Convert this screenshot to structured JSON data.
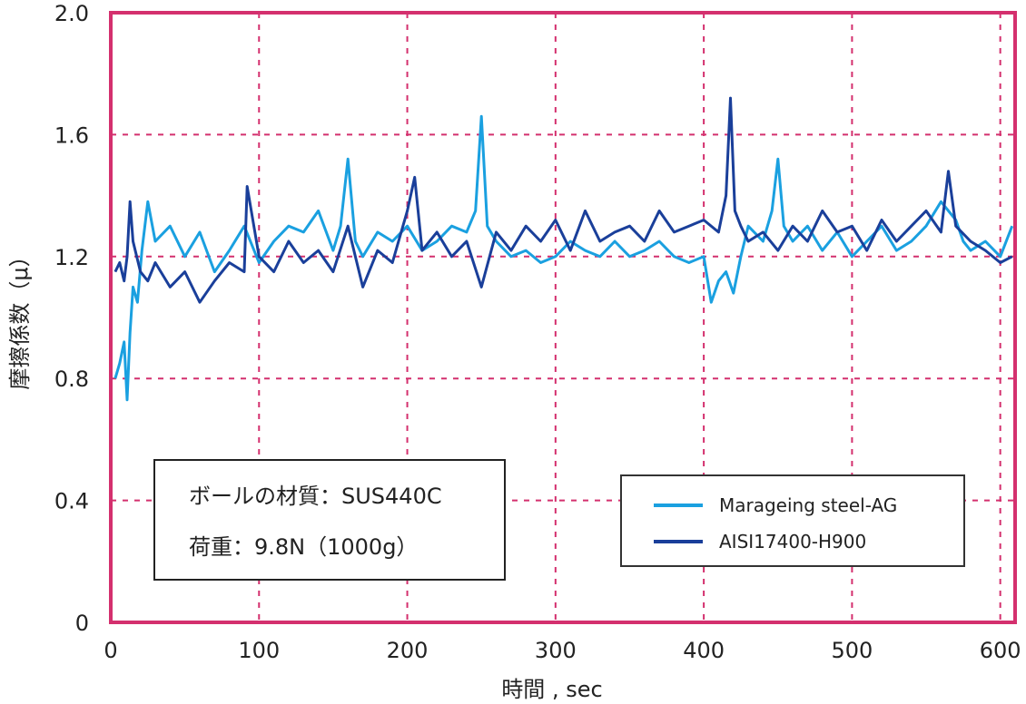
{
  "chart_data": {
    "type": "line",
    "xlabel": "時間 , sec",
    "ylabel": "摩擦係数（μ）",
    "xlim": [
      0,
      610
    ],
    "ylim": [
      0,
      2.0
    ],
    "x_ticks": [
      0,
      100,
      200,
      300,
      400,
      500,
      600
    ],
    "y_ticks": [
      0,
      0.4,
      0.8,
      1.2,
      1.6,
      2.0
    ],
    "x_tick_labels": [
      "0",
      "100",
      "200",
      "300",
      "400",
      "500",
      "600"
    ],
    "y_tick_labels": [
      "0",
      "0.4",
      "0.8",
      "1.2",
      "1.6",
      "2.0"
    ],
    "grid": true,
    "legend_position": "lower-right",
    "frame_color": "#d4306e",
    "grid_color": "#d4306e",
    "series": [
      {
        "name": "Marageing steel-AG",
        "color": "#1aa0e0",
        "x": [
          3,
          6,
          9,
          11,
          13,
          15,
          18,
          21,
          25,
          30,
          40,
          50,
          60,
          70,
          80,
          90,
          100,
          110,
          120,
          130,
          140,
          150,
          155,
          160,
          165,
          170,
          180,
          190,
          200,
          210,
          220,
          230,
          240,
          246,
          250,
          254,
          260,
          270,
          280,
          290,
          300,
          310,
          320,
          330,
          340,
          350,
          360,
          370,
          380,
          390,
          400,
          405,
          410,
          415,
          420,
          425,
          430,
          440,
          446,
          450,
          454,
          460,
          470,
          480,
          490,
          500,
          510,
          520,
          530,
          540,
          550,
          560,
          570,
          575,
          580,
          590,
          600,
          608
        ],
        "y": [
          0.8,
          0.85,
          0.92,
          0.73,
          0.95,
          1.1,
          1.05,
          1.22,
          1.38,
          1.25,
          1.3,
          1.2,
          1.28,
          1.15,
          1.22,
          1.3,
          1.18,
          1.25,
          1.3,
          1.28,
          1.35,
          1.22,
          1.3,
          1.52,
          1.25,
          1.2,
          1.28,
          1.25,
          1.3,
          1.22,
          1.25,
          1.3,
          1.28,
          1.35,
          1.66,
          1.3,
          1.25,
          1.2,
          1.22,
          1.18,
          1.2,
          1.25,
          1.22,
          1.2,
          1.25,
          1.2,
          1.22,
          1.25,
          1.2,
          1.18,
          1.2,
          1.05,
          1.12,
          1.15,
          1.08,
          1.2,
          1.3,
          1.25,
          1.35,
          1.52,
          1.3,
          1.25,
          1.3,
          1.22,
          1.28,
          1.2,
          1.25,
          1.3,
          1.22,
          1.25,
          1.3,
          1.38,
          1.32,
          1.25,
          1.22,
          1.25,
          1.2,
          1.3
        ]
      },
      {
        "name": "AISI17400-H900",
        "color": "#1a3f9a",
        "x": [
          3,
          6,
          9,
          11,
          13,
          15,
          20,
          25,
          30,
          40,
          50,
          60,
          70,
          80,
          90,
          92,
          100,
          110,
          120,
          130,
          140,
          150,
          160,
          170,
          180,
          190,
          200,
          205,
          210,
          220,
          230,
          240,
          250,
          260,
          270,
          280,
          290,
          300,
          310,
          320,
          330,
          340,
          350,
          360,
          370,
          380,
          390,
          400,
          410,
          415,
          418,
          421,
          425,
          430,
          440,
          450,
          460,
          470,
          480,
          490,
          500,
          510,
          520,
          530,
          540,
          550,
          560,
          565,
          570,
          580,
          590,
          600,
          608
        ],
        "y": [
          1.15,
          1.18,
          1.12,
          1.2,
          1.38,
          1.25,
          1.15,
          1.12,
          1.18,
          1.1,
          1.15,
          1.05,
          1.12,
          1.18,
          1.15,
          1.43,
          1.2,
          1.15,
          1.25,
          1.18,
          1.22,
          1.15,
          1.3,
          1.1,
          1.22,
          1.18,
          1.35,
          1.46,
          1.22,
          1.28,
          1.2,
          1.25,
          1.1,
          1.28,
          1.22,
          1.3,
          1.25,
          1.32,
          1.22,
          1.35,
          1.25,
          1.28,
          1.3,
          1.25,
          1.35,
          1.28,
          1.3,
          1.32,
          1.28,
          1.4,
          1.72,
          1.35,
          1.3,
          1.25,
          1.28,
          1.22,
          1.3,
          1.25,
          1.35,
          1.28,
          1.3,
          1.22,
          1.32,
          1.25,
          1.3,
          1.35,
          1.28,
          1.48,
          1.3,
          1.25,
          1.22,
          1.18,
          1.2
        ]
      }
    ],
    "annotations": [
      "ボールの材質：SUS440C",
      "荷重：9.8N（1000g）"
    ]
  }
}
